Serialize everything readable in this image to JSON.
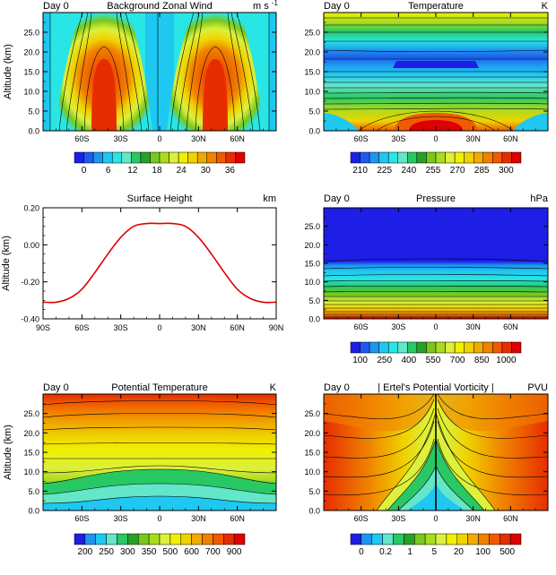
{
  "chart_data": [
    {
      "type": "heatmap",
      "day": "Day 0",
      "title": "Background Zonal Wind",
      "units": "m s",
      "units_sup": "-1",
      "ylabel": "Altitude (km)",
      "yticks": [
        "0.0",
        "5.0",
        "10.0",
        "15.0",
        "20.0",
        "25.0"
      ],
      "xticks": [
        "60S",
        "30S",
        "0",
        "30N",
        "60N"
      ],
      "colorbar": {
        "labels": [
          "0",
          "6",
          "12",
          "18",
          "24",
          "30",
          "36"
        ],
        "colors": [
          "#1e1ee6",
          "#1e5af0",
          "#1e96f0",
          "#1ec8f0",
          "#28e6e6",
          "#64e6c8",
          "#28c864",
          "#28a028",
          "#78c81e",
          "#aadc1e",
          "#dcf03c",
          "#f0f000",
          "#f0d200",
          "#f0aa00",
          "#f08200",
          "#f05a00",
          "#e62d00",
          "#dc0000"
        ]
      }
    },
    {
      "type": "heatmap",
      "day": "Day 0",
      "title": "Temperature",
      "units": "K",
      "yticks": [
        "0.0",
        "5.0",
        "10.0",
        "15.0",
        "20.0",
        "25.0"
      ],
      "xticks": [
        "60S",
        "30S",
        "0",
        "30N",
        "60N"
      ],
      "colorbar": {
        "labels": [
          "210",
          "225",
          "240",
          "255",
          "270",
          "285",
          "300"
        ],
        "colors": [
          "#1e1ee6",
          "#1e5af0",
          "#1e96f0",
          "#1ec8f0",
          "#28e6e6",
          "#64e6c8",
          "#28c864",
          "#28a028",
          "#78c81e",
          "#aadc1e",
          "#dcf03c",
          "#f0f000",
          "#f0d200",
          "#f0aa00",
          "#f08200",
          "#f05a00",
          "#e62d00",
          "#dc0000"
        ]
      }
    },
    {
      "type": "line",
      "title": "Surface Height",
      "units": "km",
      "ylabel": "Altitude (km)",
      "x": [
        -90,
        -80,
        -70,
        -60,
        -50,
        -40,
        -30,
        -20,
        -10,
        0,
        10,
        20,
        30,
        40,
        50,
        60,
        70,
        80,
        90
      ],
      "series": [
        {
          "values": [
            -0.31,
            -0.31,
            -0.29,
            -0.24,
            -0.15,
            -0.05,
            0.04,
            0.1,
            0.115,
            0.115,
            0.115,
            0.1,
            0.04,
            -0.05,
            -0.15,
            -0.24,
            -0.29,
            -0.31,
            -0.31
          ]
        }
      ],
      "xlim": [
        -90,
        90
      ],
      "ylim": [
        -0.4,
        0.2
      ],
      "yticks": [
        "0.20",
        "0.00",
        "-0.20",
        "-0.40"
      ],
      "xticks": [
        "90S",
        "60S",
        "30S",
        "0",
        "30N",
        "60N",
        "90N"
      ],
      "line_color": "#e00000"
    },
    {
      "type": "heatmap",
      "day": "Day 0",
      "title": "Pressure",
      "units": "hPa",
      "yticks": [
        "0.0",
        "5.0",
        "10.0",
        "15.0",
        "20.0",
        "25.0"
      ],
      "xticks": [
        "60S",
        "30S",
        "0",
        "30N",
        "60N"
      ],
      "colorbar": {
        "labels": [
          "100",
          "250",
          "400",
          "550",
          "700",
          "850",
          "1000"
        ],
        "colors": [
          "#1e1ee6",
          "#1e5af0",
          "#1e96f0",
          "#1ec8f0",
          "#28e6e6",
          "#64e6c8",
          "#28c864",
          "#28a028",
          "#78c81e",
          "#aadc1e",
          "#dcf03c",
          "#f0f000",
          "#f0d200",
          "#f0aa00",
          "#f08200",
          "#f05a00",
          "#e62d00",
          "#dc0000"
        ]
      }
    },
    {
      "type": "heatmap",
      "day": "Day 0",
      "title": "Potential Temperature",
      "units": "K",
      "ylabel": "Altitude (km)",
      "yticks": [
        "0.0",
        "5.0",
        "10.0",
        "15.0",
        "20.0",
        "25.0"
      ],
      "xticks": [
        "60S",
        "30S",
        "0",
        "30N",
        "60N"
      ],
      "colorbar": {
        "labels": [
          "200",
          "250",
          "300",
          "350",
          "500",
          "600",
          "700",
          "900"
        ],
        "colors": [
          "#1e1ee6",
          "#1e96f0",
          "#1ec8f0",
          "#64e6c8",
          "#28c864",
          "#28a028",
          "#78c81e",
          "#aadc1e",
          "#dcf03c",
          "#f0f000",
          "#f0d200",
          "#f0aa00",
          "#f08200",
          "#f05a00",
          "#e62d00",
          "#dc0000"
        ]
      }
    },
    {
      "type": "heatmap",
      "day": "Day 0",
      "title": "| Ertel's Potential Vorticity |",
      "units": "PVU",
      "yticks": [
        "0.0",
        "5.0",
        "10.0",
        "15.0",
        "20.0",
        "25.0"
      ],
      "xticks": [
        "60S",
        "30S",
        "0",
        "30N",
        "60N"
      ],
      "colorbar": {
        "labels": [
          "0",
          "0.2",
          "1",
          "5",
          "20",
          "100",
          "500"
        ],
        "colors": [
          "#1e1ee6",
          "#1e96f0",
          "#1ec8f0",
          "#64e6c8",
          "#28c864",
          "#28a028",
          "#78c81e",
          "#aadc1e",
          "#dcf03c",
          "#f0f000",
          "#f0d200",
          "#f0aa00",
          "#f08200",
          "#f05a00",
          "#e62d00",
          "#dc0000"
        ]
      }
    }
  ]
}
